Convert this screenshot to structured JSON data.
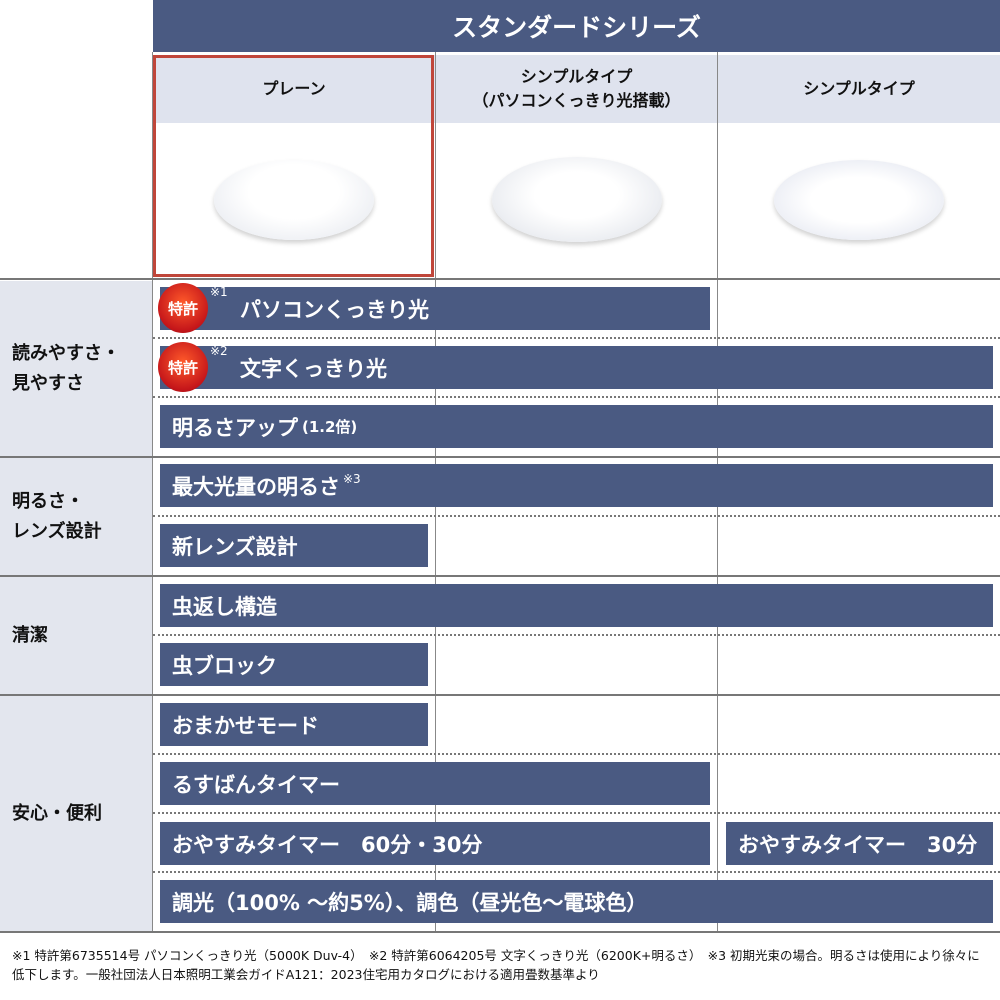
{
  "header": {
    "series": "スタンダードシリーズ"
  },
  "columns": [
    {
      "name": "プレーン",
      "selected": true
    },
    {
      "name_line1": "シンプルタイプ",
      "name_line2": "（パソコンくっきり光搭載）"
    },
    {
      "name": "シンプルタイプ"
    }
  ],
  "sections": [
    {
      "label_line1": "読みやすさ・",
      "label_line2": "見やすさ"
    },
    {
      "label_line1": "明るさ・",
      "label_line2": "レンズ設計"
    },
    {
      "label": "清潔"
    },
    {
      "label": "安心・便利"
    }
  ],
  "features": {
    "pc_light": {
      "badge": "特許",
      "note": "※1",
      "label": "パソコンくっきり光"
    },
    "text_light": {
      "badge": "特許",
      "note": "※2",
      "label": "文字くっきり光"
    },
    "bright_up": {
      "label": "明るさアップ",
      "sub": "(1.2倍)"
    },
    "max_light": {
      "label": "最大光量の明るさ",
      "note": "※3"
    },
    "new_lens": {
      "label": "新レンズ設計"
    },
    "bug_return": {
      "label": "虫返し構造"
    },
    "bug_block": {
      "label": "虫ブロック"
    },
    "omakase": {
      "label": "おまかせモード"
    },
    "rusuban": {
      "label": "るすばんタイマー"
    },
    "oyasumi1": {
      "label": "おやすみタイマー　60分・30分"
    },
    "oyasumi2": {
      "label": "おやすみタイマー　30分"
    },
    "dimming": {
      "label": "調光（100% ～約5%）、調色（昼光色～電球色）"
    }
  },
  "footnote": "※1 特許第6735514号 パソコンくっきり光（5000K Duv-4）　※2 特許第6064205号 文字くっきり光（6200K+明るさ）　※3 初期光束の場合。明るさは使用により徐々に低下します。一般社団法人日本照明工業会ガイドA121：2023住宅用カタログにおける適用畳数基準より",
  "colors": {
    "bar": "#4a5a82",
    "header_bg": "#dfe3ee",
    "selected_border": "#c0463a",
    "badge": "#c5161a"
  }
}
